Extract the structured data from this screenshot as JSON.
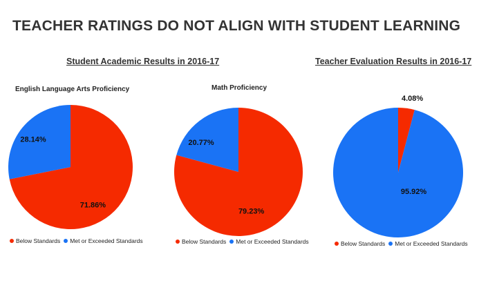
{
  "page_title": "TEACHER RATINGS DO NOT ALIGN WITH STUDENT LEARNING",
  "sections": [
    {
      "title": "Student Academic Results in 2016-17"
    },
    {
      "title": "Teacher Evaluation Results in 2016-17"
    }
  ],
  "colors": {
    "below": "#f52a00",
    "met": "#1a73f5"
  },
  "legend": {
    "below": "Below Standards",
    "met": "Met or Exceeded Standards"
  },
  "chart_data": [
    {
      "type": "pie",
      "title": "English Language Arts Proficiency",
      "slices": [
        {
          "name": "Below Standards",
          "value": 71.86,
          "label": "71.86%"
        },
        {
          "name": "Met or Exceeded Standards",
          "value": 28.14,
          "label": "28.14%"
        }
      ],
      "legend_position": "bottom"
    },
    {
      "type": "pie",
      "title": "Math Proficiency",
      "slices": [
        {
          "name": "Below Standards",
          "value": 79.23,
          "label": "79.23%"
        },
        {
          "name": "Met or Exceeded Standards",
          "value": 20.77,
          "label": "20.77%"
        }
      ],
      "legend_position": "bottom"
    },
    {
      "type": "pie",
      "title": "",
      "slices": [
        {
          "name": "Below Standards",
          "value": 4.08,
          "label": "4.08%"
        },
        {
          "name": "Met or Exceeded Standards",
          "value": 95.92,
          "label": "95.92%"
        }
      ],
      "legend_position": "bottom"
    }
  ]
}
